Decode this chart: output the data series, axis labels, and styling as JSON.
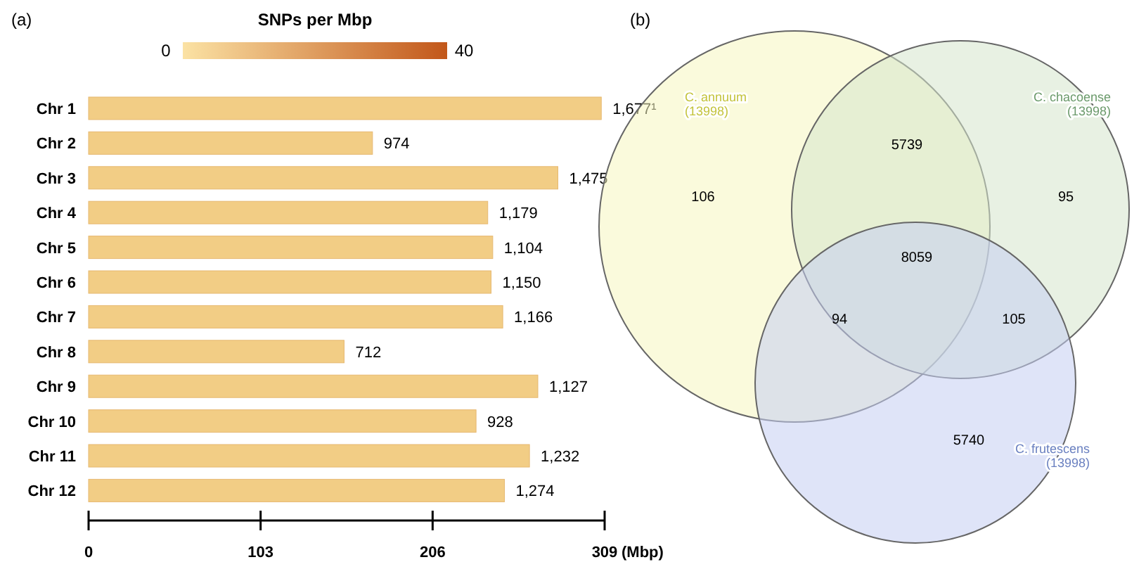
{
  "chart_data": [
    {
      "type": "bar",
      "orientation": "horizontal",
      "title": "(a)",
      "clabel": "SNPs per Mbp",
      "xlabel": "(Mbp)",
      "xlim": [
        0,
        309
      ],
      "xticks": [
        0,
        103,
        206,
        309
      ],
      "categories": [
        "Chr 1",
        "Chr 2",
        "Chr 3",
        "Chr 4",
        "Chr 5",
        "Chr 6",
        "Chr 7",
        "Chr 8",
        "Chr 9",
        "Chr 10",
        "Chr 11",
        "Chr 12"
      ],
      "series": [
        {
          "color": "#f2cd85",
          "values": [
            307,
            170,
            281,
            239,
            242,
            241,
            248,
            153,
            269,
            232,
            264,
            249
          ]
        }
      ],
      "annotations": [
        "0",
        "40",
        {
          "text": "1,677¹",
          "x": 307,
          "y": "Chr 1"
        },
        {
          "text": "974",
          "x": 170,
          "y": "Chr 2"
        },
        {
          "text": "1,475",
          "x": 281,
          "y": "Chr 3"
        },
        {
          "text": "1,179",
          "x": 239,
          "y": "Chr 4"
        },
        {
          "text": "1,104",
          "x": 242,
          "y": "Chr 5"
        },
        {
          "text": "1,150",
          "x": 241,
          "y": "Chr 6"
        },
        {
          "text": "1,166",
          "x": 248,
          "y": "Chr 7"
        },
        {
          "text": "712",
          "x": 153,
          "y": "Chr 8"
        },
        {
          "text": "1,127",
          "x": 269,
          "y": "Chr 9"
        },
        {
          "text": "928",
          "x": 232,
          "y": "Chr 10"
        },
        {
          "text": "1,232",
          "x": 264,
          "y": "Chr 11"
        },
        {
          "text": "1,274",
          "x": 249,
          "y": "Chr 12"
        }
      ]
    },
    {
      "type": "other",
      "title": "(b)",
      "categories": [
        "C. annuum",
        "C. chacoense",
        "C. frutescens"
      ],
      "value_labels": [
        "(13998)",
        "(13998)",
        "(13998)"
      ],
      "colors": [
        "#f5f5c0",
        "#d5e5cc",
        "#c5cdf2"
      ],
      "annotations": [
        "106",
        "5739",
        "95",
        "8059",
        "94",
        "105",
        "5740"
      ]
    }
  ]
}
